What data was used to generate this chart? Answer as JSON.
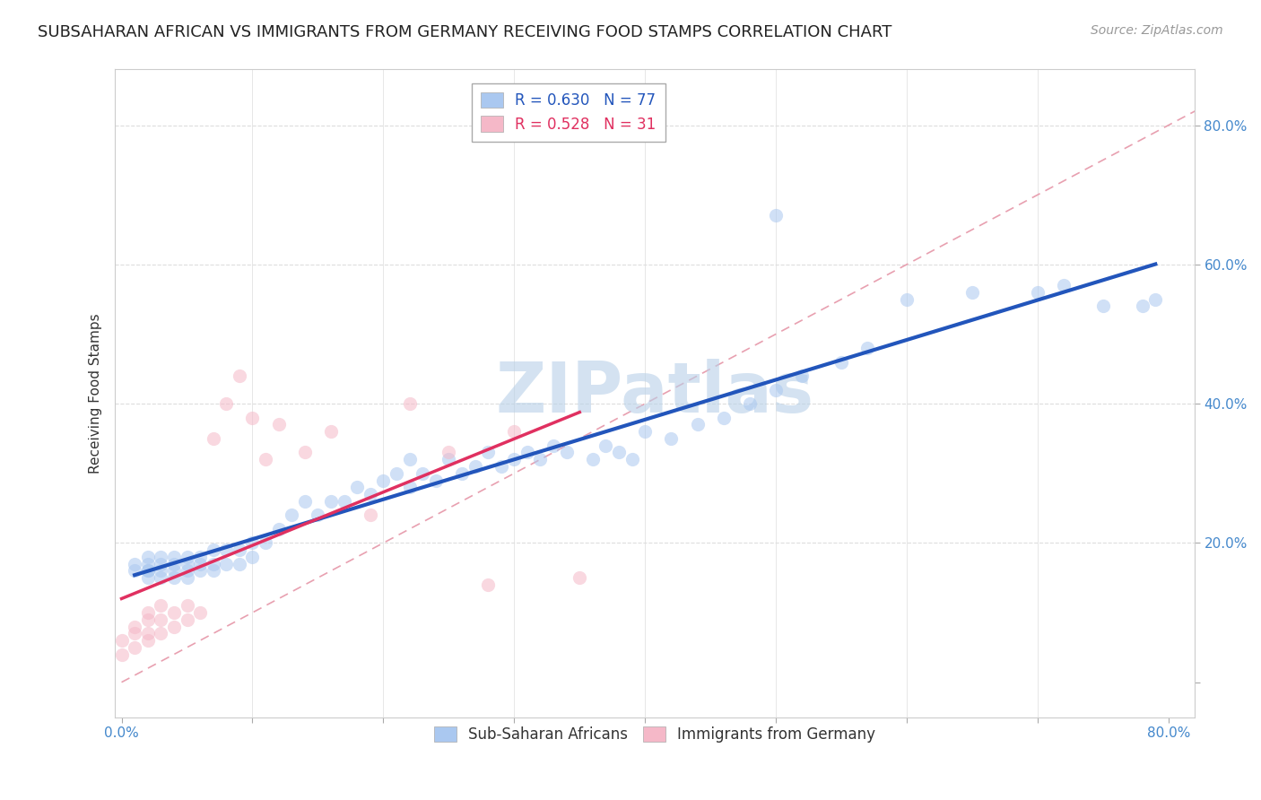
{
  "title": "SUBSAHARAN AFRICAN VS IMMIGRANTS FROM GERMANY RECEIVING FOOD STAMPS CORRELATION CHART",
  "source": "Source: ZipAtlas.com",
  "ylabel": "Receiving Food Stamps",
  "xlabel": "",
  "xlim": [
    -0.005,
    0.82
  ],
  "ylim": [
    -0.05,
    0.88
  ],
  "xticks": [
    0.0,
    0.1,
    0.2,
    0.3,
    0.4,
    0.5,
    0.6,
    0.7,
    0.8
  ],
  "yticks": [
    0.0,
    0.2,
    0.4,
    0.6,
    0.8
  ],
  "legend1_text": "R = 0.630   N = 77",
  "legend2_text": "R = 0.528   N = 31",
  "blue_fill_color": "#aac8f0",
  "pink_fill_color": "#f5b8c8",
  "blue_line_color": "#2255bb",
  "pink_line_color": "#e03060",
  "ref_line_color": "#e8a0b0",
  "watermark": "ZIPatlas",
  "watermark_color": "#b8d0e8",
  "tick_color": "#4488cc",
  "blue_x": [
    0.01,
    0.01,
    0.02,
    0.02,
    0.02,
    0.02,
    0.02,
    0.03,
    0.03,
    0.03,
    0.03,
    0.04,
    0.04,
    0.04,
    0.04,
    0.05,
    0.05,
    0.05,
    0.05,
    0.06,
    0.06,
    0.06,
    0.07,
    0.07,
    0.07,
    0.08,
    0.08,
    0.09,
    0.09,
    0.1,
    0.1,
    0.11,
    0.12,
    0.13,
    0.14,
    0.15,
    0.16,
    0.17,
    0.18,
    0.19,
    0.2,
    0.21,
    0.22,
    0.22,
    0.23,
    0.24,
    0.25,
    0.26,
    0.27,
    0.28,
    0.29,
    0.3,
    0.31,
    0.32,
    0.33,
    0.34,
    0.36,
    0.37,
    0.38,
    0.39,
    0.4,
    0.42,
    0.44,
    0.46,
    0.48,
    0.5,
    0.52,
    0.55,
    0.57,
    0.6,
    0.65,
    0.7,
    0.72,
    0.75,
    0.78,
    0.79,
    0.5
  ],
  "blue_y": [
    0.16,
    0.17,
    0.15,
    0.16,
    0.17,
    0.18,
    0.16,
    0.15,
    0.16,
    0.17,
    0.18,
    0.15,
    0.16,
    0.17,
    0.18,
    0.15,
    0.16,
    0.17,
    0.18,
    0.16,
    0.17,
    0.18,
    0.16,
    0.17,
    0.19,
    0.17,
    0.19,
    0.17,
    0.19,
    0.18,
    0.2,
    0.2,
    0.22,
    0.24,
    0.26,
    0.24,
    0.26,
    0.26,
    0.28,
    0.27,
    0.29,
    0.3,
    0.28,
    0.32,
    0.3,
    0.29,
    0.32,
    0.3,
    0.31,
    0.33,
    0.31,
    0.32,
    0.33,
    0.32,
    0.34,
    0.33,
    0.32,
    0.34,
    0.33,
    0.32,
    0.36,
    0.35,
    0.37,
    0.38,
    0.4,
    0.42,
    0.44,
    0.46,
    0.48,
    0.55,
    0.56,
    0.56,
    0.57,
    0.54,
    0.54,
    0.55,
    0.67
  ],
  "pink_x": [
    0.0,
    0.0,
    0.01,
    0.01,
    0.01,
    0.02,
    0.02,
    0.02,
    0.02,
    0.03,
    0.03,
    0.03,
    0.04,
    0.04,
    0.05,
    0.05,
    0.06,
    0.07,
    0.08,
    0.09,
    0.1,
    0.11,
    0.12,
    0.14,
    0.16,
    0.19,
    0.22,
    0.25,
    0.28,
    0.3,
    0.35
  ],
  "pink_y": [
    0.04,
    0.06,
    0.05,
    0.07,
    0.08,
    0.06,
    0.07,
    0.09,
    0.1,
    0.07,
    0.09,
    0.11,
    0.08,
    0.1,
    0.09,
    0.11,
    0.1,
    0.35,
    0.4,
    0.44,
    0.38,
    0.32,
    0.37,
    0.33,
    0.36,
    0.24,
    0.4,
    0.33,
    0.14,
    0.36,
    0.15
  ],
  "title_fontsize": 13,
  "axis_label_fontsize": 11,
  "tick_fontsize": 11,
  "legend_fontsize": 12
}
